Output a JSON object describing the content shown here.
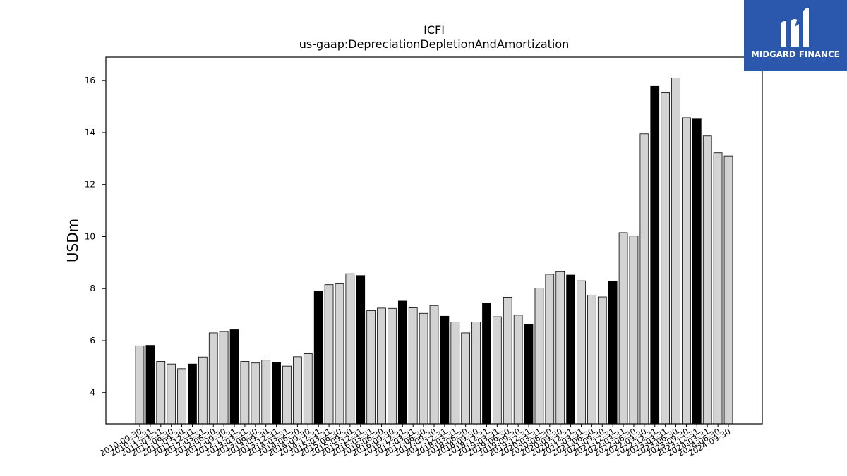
{
  "logo": {
    "text": "MIDGARD FINANCE",
    "icon": "midgard-logo-icon"
  },
  "chart_data": {
    "type": "bar",
    "title": "ICFI",
    "subtitle": "us-gaap:DepreciationDepletionAndAmortization",
    "ylabel": "USDm",
    "xlabel": "",
    "ylim": [
      2.8,
      16.9
    ],
    "yticks": [
      4,
      6,
      8,
      10,
      12,
      14,
      16
    ],
    "grid": false,
    "colors": {
      "normal": "#d3d3d3",
      "highlight": "#000000",
      "edge": "#000000"
    },
    "categories": [
      "2010-09-30",
      "2010-12-31",
      "2011-03-31",
      "2011-06-30",
      "2011-09-30",
      "2011-12-31",
      "2012-03-31",
      "2012-06-30",
      "2012-09-30",
      "2012-12-31",
      "2013-03-31",
      "2013-06-30",
      "2013-09-30",
      "2013-12-31",
      "2014-03-31",
      "2014-06-30",
      "2014-09-30",
      "2014-12-31",
      "2015-03-31",
      "2015-06-30",
      "2015-09-30",
      "2015-12-31",
      "2016-03-31",
      "2016-06-30",
      "2016-09-30",
      "2016-12-31",
      "2017-03-31",
      "2017-06-30",
      "2017-09-30",
      "2017-12-31",
      "2018-03-31",
      "2018-06-30",
      "2018-09-30",
      "2018-12-31",
      "2019-03-31",
      "2019-06-30",
      "2019-09-30",
      "2019-12-31",
      "2020-03-31",
      "2020-06-30",
      "2020-09-30",
      "2020-12-31",
      "2021-03-31",
      "2021-06-30",
      "2021-09-30",
      "2021-12-31",
      "2022-03-31",
      "2022-06-30",
      "2022-09-30",
      "2022-12-31",
      "2023-03-31",
      "2023-06-30",
      "2023-09-30",
      "2023-12-31",
      "2024-03-31",
      "2024-06-30",
      "2024-09-30"
    ],
    "values": [
      5.8,
      5.82,
      5.2,
      5.1,
      4.92,
      5.1,
      5.37,
      6.3,
      6.35,
      6.42,
      5.2,
      5.14,
      5.25,
      5.15,
      5.02,
      5.38,
      5.5,
      7.9,
      8.15,
      8.18,
      8.57,
      8.5,
      7.15,
      7.25,
      7.24,
      7.52,
      7.26,
      7.05,
      7.35,
      6.94,
      6.72,
      6.3,
      6.72,
      7.45,
      6.92,
      7.67,
      6.98,
      6.63,
      8.02,
      8.55,
      8.65,
      8.52,
      8.3,
      7.75,
      7.68,
      8.28,
      10.15,
      10.02,
      13.95,
      15.78,
      15.53,
      16.1,
      14.57,
      14.52,
      13.87,
      13.22,
      13.1
    ],
    "highlight": [
      false,
      true,
      false,
      false,
      false,
      true,
      false,
      false,
      false,
      true,
      false,
      false,
      false,
      true,
      false,
      false,
      false,
      true,
      false,
      false,
      false,
      true,
      false,
      false,
      false,
      true,
      false,
      false,
      false,
      true,
      false,
      false,
      false,
      true,
      false,
      false,
      false,
      true,
      false,
      false,
      false,
      true,
      false,
      false,
      false,
      true,
      false,
      false,
      false,
      true,
      false,
      false,
      false,
      true,
      false,
      false,
      false
    ]
  }
}
